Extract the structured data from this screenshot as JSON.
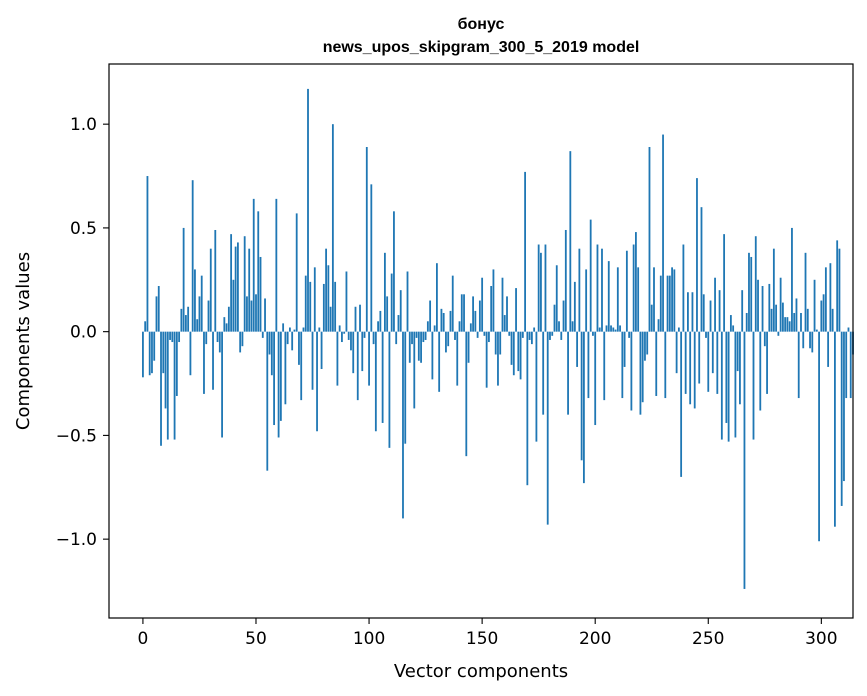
{
  "chart_data": {
    "type": "bar",
    "title": [
      "бонус",
      "news_upos_skipgram_300_5_2019 model"
    ],
    "xlabel": "Vector components",
    "ylabel": "Components values",
    "xlim": [
      -15,
      314
    ],
    "ylim": [
      -1.38,
      1.29
    ],
    "xticks": [
      0,
      50,
      100,
      150,
      200,
      250,
      300
    ],
    "xtick_labels": [
      "0",
      "50",
      "100",
      "150",
      "200",
      "250",
      "300"
    ],
    "yticks": [
      -1.0,
      -0.5,
      0.0,
      0.5,
      1.0
    ],
    "ytick_labels": [
      "−1.0",
      "−0.5",
      "0.0",
      "0.5",
      "1.0"
    ],
    "bar_color": "#1f77b4",
    "grid": false,
    "values": [
      -0.22,
      0.05,
      0.75,
      -0.21,
      -0.2,
      -0.14,
      0.17,
      0.22,
      -0.55,
      -0.2,
      -0.37,
      -0.52,
      -0.04,
      -0.05,
      -0.52,
      -0.31,
      -0.05,
      0.11,
      0.5,
      0.08,
      0.12,
      -0.21,
      0.73,
      0.3,
      0.06,
      0.17,
      0.27,
      -0.3,
      -0.06,
      0.15,
      0.4,
      -0.28,
      0.49,
      -0.05,
      -0.1,
      -0.51,
      0.07,
      0.04,
      0.12,
      0.47,
      0.25,
      0.41,
      0.43,
      -0.1,
      -0.07,
      0.46,
      0.17,
      0.4,
      0.15,
      0.64,
      0.18,
      0.58,
      0.36,
      -0.03,
      0.16,
      -0.67,
      -0.11,
      -0.21,
      -0.45,
      0.64,
      -0.51,
      -0.43,
      0.04,
      -0.35,
      -0.06,
      0.02,
      -0.09,
      0.01,
      0.57,
      -0.16,
      -0.33,
      0.02,
      0.27,
      1.17,
      0.24,
      -0.28,
      0.31,
      -0.48,
      0.02,
      -0.18,
      0.23,
      0.4,
      0.32,
      0.12,
      1.0,
      0.24,
      -0.26,
      0.03,
      -0.05,
      -0.01,
      0.29,
      -0.04,
      -0.09,
      -0.2,
      0.12,
      -0.33,
      0.13,
      -0.19,
      -0.03,
      0.89,
      -0.26,
      0.71,
      -0.06,
      -0.48,
      0.05,
      0.1,
      -0.44,
      0.38,
      0.17,
      -0.56,
      0.28,
      0.58,
      -0.06,
      0.08,
      0.2,
      -0.9,
      -0.54,
      0.29,
      -0.15,
      -0.06,
      -0.37,
      -0.03,
      -0.14,
      -0.15,
      -0.05,
      -0.04,
      0.05,
      0.15,
      -0.23,
      0.03,
      0.33,
      -0.29,
      0.11,
      0.09,
      -0.1,
      -0.07,
      0.1,
      0.27,
      -0.04,
      -0.26,
      0.05,
      0.18,
      0.18,
      -0.6,
      -0.15,
      0.04,
      0.17,
      0.1,
      -0.03,
      0.15,
      0.26,
      -0.02,
      -0.27,
      -0.05,
      0.22,
      0.3,
      -0.11,
      -0.26,
      -0.11,
      0.26,
      0.08,
      0.17,
      -0.02,
      -0.16,
      -0.21,
      0.21,
      -0.19,
      -0.23,
      -0.03,
      0.77,
      -0.74,
      -0.04,
      -0.06,
      0.02,
      -0.53,
      0.42,
      0.38,
      -0.4,
      0.42,
      -0.93,
      -0.04,
      -0.02,
      0.13,
      0.32,
      0.05,
      -0.04,
      0.15,
      0.49,
      -0.4,
      0.87,
      0.05,
      0.24,
      -0.17,
      0.4,
      -0.62,
      -0.73,
      0.3,
      -0.32,
      0.54,
      -0.02,
      -0.45,
      0.42,
      0.02,
      0.4,
      -0.33,
      0.03,
      0.34,
      0.03,
      0.02,
      0.01,
      0.31,
      0.03,
      -0.32,
      -0.17,
      0.39,
      -0.03,
      -0.38,
      0.42,
      0.48,
      0.31,
      -0.4,
      -0.34,
      -0.14,
      -0.11,
      0.89,
      0.13,
      0.31,
      -0.31,
      0.06,
      0.27,
      0.95,
      -0.32,
      0.27,
      0.27,
      0.31,
      0.3,
      -0.2,
      0.02,
      -0.7,
      0.42,
      -0.3,
      0.19,
      -0.35,
      0.19,
      -0.37,
      0.74,
      -0.25,
      0.6,
      0.18,
      -0.03,
      -0.29,
      0.15,
      -0.2,
      0.26,
      -0.3,
      0.2,
      -0.52,
      0.47,
      -0.44,
      -0.53,
      0.08,
      0.03,
      -0.51,
      -0.19,
      -0.35,
      0.2,
      -1.24,
      0.09,
      0.38,
      0.36,
      -0.52,
      0.46,
      0.25,
      -0.38,
      0.22,
      -0.07,
      -0.3,
      0.23,
      0.11,
      0.4,
      0.13,
      -0.02,
      0.26,
      0.14,
      0.07,
      0.07,
      0.05,
      0.5,
      0.09,
      0.16,
      -0.32,
      0.09,
      -0.08,
      0.38,
      0.11,
      -0.08,
      -0.1,
      0.25,
      0.01,
      -1.01,
      0.15,
      0.18,
      0.31,
      -0.17,
      0.33,
      0.11,
      -0.94,
      0.44,
      0.4,
      -0.84,
      -0.72,
      -0.32,
      0.02,
      -0.32,
      -0.11
    ]
  }
}
